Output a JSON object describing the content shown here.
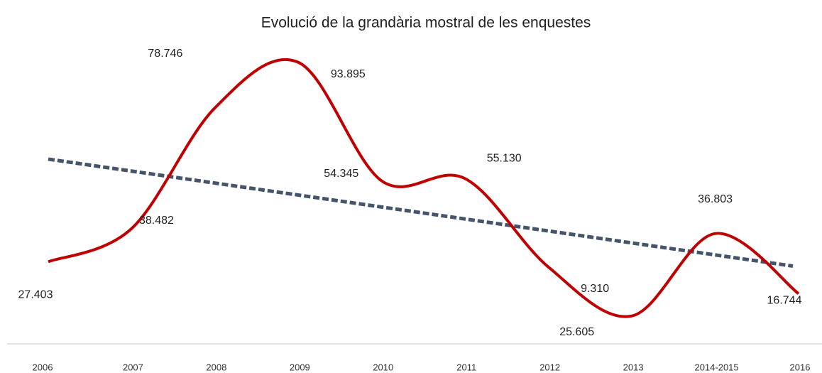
{
  "chart_data": {
    "type": "line",
    "title": "Evolució de la grandària mostral de les enquestes",
    "categories": [
      "2006",
      "2007",
      "2008",
      "2009",
      "2010",
      "2011",
      "2012",
      "2013",
      "2014-2015",
      "2016"
    ],
    "values": [
      27403,
      38482,
      78746,
      93895,
      54345,
      55130,
      25605,
      9310,
      36803,
      16744
    ],
    "value_labels": [
      "27.403",
      "38.482",
      "78.746",
      "93.895",
      "54.345",
      "55.130",
      "25.605",
      "9.310",
      "36.803",
      "16.744"
    ],
    "color": "#c00000",
    "smooth": true,
    "ylim": [
      0,
      100000
    ],
    "trendline": true,
    "trendline_color": "#44546a"
  }
}
